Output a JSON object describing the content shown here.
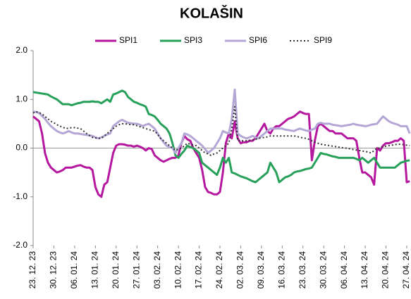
{
  "chart_data": {
    "type": "line",
    "title": "KOLAŠIN",
    "categories": [
      "23. 12. 23",
      null,
      null,
      null,
      null,
      null,
      null,
      "30. 12. 23",
      null,
      null,
      null,
      null,
      null,
      null,
      "06. 01. 24",
      null,
      null,
      null,
      null,
      null,
      null,
      "13. 01. 24",
      null,
      null,
      null,
      null,
      null,
      null,
      "20. 01. 24",
      null,
      null,
      null,
      null,
      null,
      null,
      "27. 01. 24",
      null,
      null,
      null,
      null,
      null,
      null,
      "03. 02. 24",
      null,
      null,
      null,
      null,
      null,
      null,
      "10. 02. 24",
      null,
      null,
      null,
      null,
      null,
      null,
      "17. 02. 24",
      null,
      null,
      null,
      null,
      null,
      null,
      "24. 02. 24",
      null,
      null,
      null,
      null,
      null,
      null,
      "02. 03. 24",
      null,
      null,
      null,
      null,
      null,
      null,
      "09. 03. 24",
      null,
      null,
      null,
      null,
      null,
      null,
      "16. 03. 24",
      null,
      null,
      null,
      null,
      null,
      null,
      "23. 03. 24",
      null,
      null,
      null,
      null,
      null,
      null,
      "30. 03. 24",
      null,
      null,
      null,
      null,
      null,
      null,
      "06. 04. 24",
      null,
      null,
      null,
      null,
      null,
      null,
      "13. 04. 24",
      null,
      null,
      null,
      null,
      null,
      null,
      "20. 04. 24",
      null,
      null,
      null,
      null,
      null,
      null,
      "27. 04. 24",
      null
    ],
    "series": [
      {
        "name": "SPI1",
        "color": "#b5179e",
        "style": "solid",
        "values": [
          0.65,
          0.6,
          0.55,
          0.3,
          -0.1,
          -0.3,
          -0.4,
          -0.45,
          -0.5,
          -0.48,
          -0.45,
          -0.4,
          -0.4,
          -0.4,
          -0.38,
          -0.36,
          -0.35,
          -0.38,
          -0.4,
          -0.4,
          -0.45,
          -0.8,
          -0.95,
          -1.0,
          -0.75,
          -0.7,
          -0.4,
          -0.1,
          0.05,
          0.08,
          0.08,
          0.07,
          0.05,
          0.05,
          0.03,
          0.05,
          0.03,
          0.0,
          -0.05,
          0.0,
          -0.02,
          -0.15,
          -0.2,
          -0.25,
          -0.28,
          -0.25,
          -0.22,
          -0.2,
          -0.2,
          -0.15,
          0.1,
          0.25,
          0.18,
          0.15,
          0.0,
          -0.1,
          -0.2,
          -0.45,
          -0.8,
          -0.9,
          -0.92,
          -0.95,
          -0.95,
          -0.9,
          -0.5,
          0.1,
          0.3,
          0.2,
          0.55,
          0.2,
          0.1,
          0.12,
          0.12,
          0.15,
          0.15,
          0.2,
          0.3,
          0.4,
          0.5,
          0.35,
          0.3,
          0.4,
          0.45,
          0.45,
          0.5,
          0.55,
          0.6,
          0.62,
          0.65,
          0.7,
          0.75,
          0.72,
          0.7,
          0.7,
          -0.25,
          0.15,
          0.45,
          0.5,
          0.45,
          0.4,
          0.35,
          0.35,
          0.3,
          0.3,
          0.3,
          0.25,
          0.2,
          0.2,
          0.2,
          0.15,
          -0.2,
          -0.5,
          -0.5,
          -0.55,
          -0.6,
          -0.75,
          0.0,
          -0.05,
          0.05,
          0.1,
          0.1,
          0.12,
          0.15,
          0.15,
          0.2,
          0.15,
          -0.7,
          -0.68
        ]
      },
      {
        "name": "SPI3",
        "color": "#27a05a",
        "style": "solid",
        "values": [
          1.15,
          1.14,
          1.13,
          1.12,
          1.11,
          1.1,
          1.06,
          1.03,
          1.0,
          0.95,
          0.9,
          0.9,
          0.9,
          0.88,
          0.9,
          0.92,
          0.93,
          0.95,
          0.95,
          0.95,
          0.96,
          0.95,
          0.95,
          0.92,
          0.96,
          1.0,
          0.95,
          1.1,
          1.12,
          1.15,
          1.18,
          1.15,
          1.05,
          1.0,
          0.95,
          0.93,
          0.9,
          0.88,
          0.85,
          0.7,
          0.68,
          0.65,
          0.58,
          0.5,
          0.45,
          0.4,
          0.3,
          0.1,
          -0.15,
          -0.2,
          -0.12,
          -0.05,
          0.05,
          0.02,
          0.0,
          -0.05,
          -0.1,
          -0.3,
          -0.35,
          -0.4,
          -0.45,
          -0.5,
          -0.55,
          -0.4,
          -0.2,
          -0.3,
          -0.2,
          -0.5,
          -0.52,
          -0.55,
          -0.58,
          -0.6,
          -0.62,
          -0.65,
          -0.68,
          -0.7,
          -0.65,
          -0.6,
          -0.55,
          -0.5,
          -0.3,
          -0.4,
          -0.5,
          -0.7,
          -0.65,
          -0.6,
          -0.58,
          -0.55,
          -0.5,
          -0.48,
          -0.47,
          -0.45,
          -0.43,
          -0.42,
          -0.4,
          -0.3,
          -0.2,
          -0.1,
          -0.12,
          -0.13,
          -0.15,
          -0.17,
          -0.18,
          -0.2,
          -0.2,
          -0.2,
          -0.2,
          -0.2,
          -0.2,
          -0.22,
          -0.25,
          -0.2,
          -0.25,
          -0.3,
          -0.25,
          -0.2,
          -0.3,
          -0.4,
          -0.4,
          -0.4,
          -0.4,
          -0.4,
          -0.4,
          -0.35,
          -0.3,
          -0.28,
          -0.26,
          -0.25
        ]
      },
      {
        "name": "SPI6",
        "color": "#b4a7d6",
        "style": "solid",
        "values": [
          0.75,
          0.74,
          0.72,
          0.66,
          0.6,
          0.52,
          0.45,
          0.4,
          0.35,
          0.32,
          0.3,
          0.32,
          0.35,
          0.32,
          0.3,
          0.3,
          0.29,
          0.28,
          0.27,
          0.26,
          0.25,
          0.22,
          0.2,
          0.22,
          0.25,
          0.28,
          0.3,
          0.45,
          0.5,
          0.55,
          0.58,
          0.55,
          0.52,
          0.51,
          0.5,
          0.5,
          0.48,
          0.45,
          0.48,
          0.5,
          0.45,
          0.4,
          0.3,
          0.2,
          0.12,
          0.05,
          0.02,
          0.0,
          -0.1,
          0.0,
          0.1,
          0.3,
          0.28,
          0.25,
          0.2,
          0.15,
          0.1,
          0.05,
          -0.02,
          -0.1,
          -0.05,
          0.0,
          0.1,
          0.2,
          0.35,
          0.32,
          0.3,
          0.6,
          1.2,
          0.3,
          0.25,
          0.22,
          0.2,
          0.22,
          0.25,
          0.22,
          0.2,
          0.25,
          0.3,
          0.35,
          0.4,
          0.4,
          0.4,
          0.4,
          0.4,
          0.38,
          0.37,
          0.36,
          0.35,
          0.38,
          0.4,
          0.38,
          0.36,
          0.35,
          0.38,
          0.4,
          0.5,
          0.52,
          0.5,
          0.5,
          0.5,
          0.48,
          0.47,
          0.46,
          0.45,
          0.46,
          0.47,
          0.48,
          0.5,
          0.48,
          0.47,
          0.46,
          0.45,
          0.46,
          0.48,
          0.49,
          0.5,
          0.58,
          0.65,
          0.6,
          0.55,
          0.52,
          0.5,
          0.48,
          0.45,
          0.45,
          0.45,
          0.3
        ]
      },
      {
        "name": "SPI9",
        "color": "#333333",
        "style": "dotted",
        "values": [
          0.72,
          0.75,
          0.73,
          0.7,
          0.65,
          0.6,
          0.55,
          0.52,
          0.48,
          0.45,
          0.43,
          0.4,
          0.41,
          0.42,
          0.42,
          0.41,
          0.4,
          0.35,
          0.3,
          0.26,
          0.22,
          0.21,
          0.2,
          0.2,
          0.25,
          0.3,
          0.35,
          0.4,
          0.45,
          0.48,
          0.5,
          0.5,
          0.49,
          0.48,
          0.48,
          0.46,
          0.44,
          0.42,
          0.4,
          0.38,
          0.36,
          0.35,
          0.28,
          0.2,
          0.15,
          0.1,
          0.05,
          0.0,
          -0.05,
          -0.02,
          0.0,
          0.05,
          0.1,
          0.08,
          0.06,
          0.05,
          0.0,
          -0.05,
          -0.1,
          -0.12,
          -0.15,
          -0.12,
          -0.1,
          -0.05,
          0.0,
          0.05,
          0.1,
          0.4,
          0.85,
          0.15,
          0.15,
          0.15,
          0.15,
          0.16,
          0.17,
          0.18,
          0.2,
          0.21,
          0.22,
          0.23,
          0.25,
          0.25,
          0.25,
          0.25,
          0.25,
          0.25,
          0.25,
          0.25,
          0.25,
          0.24,
          0.22,
          0.21,
          0.2,
          0.18,
          0.15,
          0.12,
          0.1,
          0.08,
          0.07,
          0.06,
          0.05,
          0.04,
          0.03,
          0.02,
          0.01,
          0.0,
          0.0,
          -0.02,
          -0.03,
          -0.04,
          -0.05,
          -0.06,
          -0.07,
          -0.08,
          -0.1,
          -0.05,
          0.0,
          0.0,
          0.03,
          0.04,
          0.05,
          0.06,
          0.07,
          0.08,
          0.08,
          0.07,
          0.06,
          0.05
        ]
      }
    ],
    "ylim": [
      -2,
      2
    ],
    "yticks": [
      {
        "value": 2,
        "label": "2.0"
      },
      {
        "value": 1,
        "label": "1.0"
      },
      {
        "value": 0,
        "label": "0.0"
      },
      {
        "value": -1,
        "label": "-1.0"
      },
      {
        "value": -2,
        "label": "-2.0"
      }
    ],
    "zero_line": true,
    "legend": "top"
  }
}
